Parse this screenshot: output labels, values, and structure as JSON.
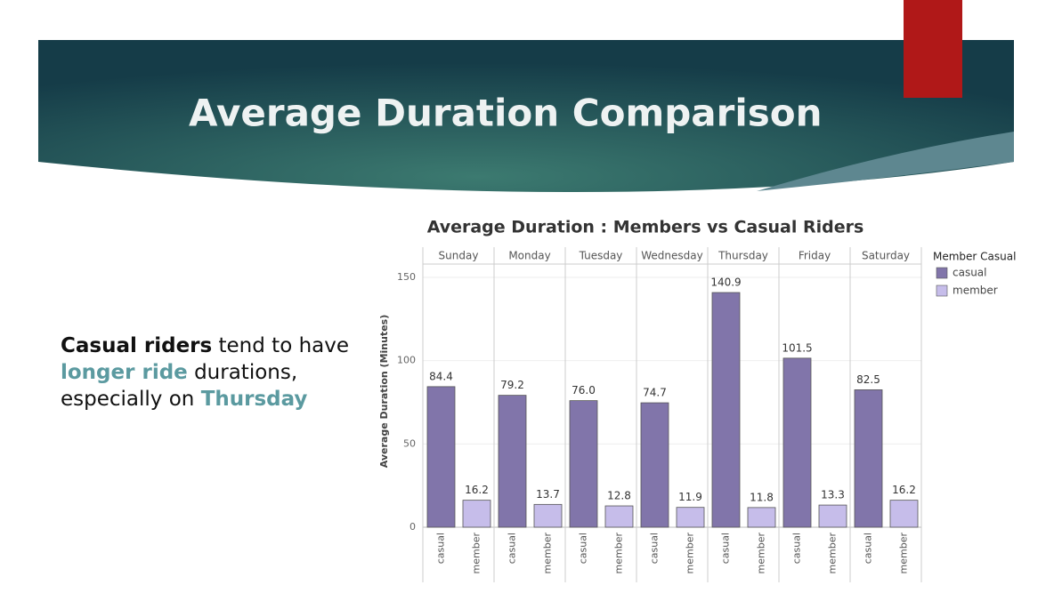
{
  "slide": {
    "title": "Average Duration Comparison",
    "side_text": [
      "Casual riders",
      "tend to have",
      "longer ride",
      "durations,",
      "especially on",
      "Thursday"
    ]
  },
  "chart_data": {
    "type": "bar",
    "title": "Average Duration : Members vs Casual Riders",
    "y_label": "Average Duration (Minutes)",
    "legend_title": "Member Casual",
    "categories": [
      "Sunday",
      "Monday",
      "Tuesday",
      "Wednesday",
      "Thursday",
      "Friday",
      "Saturday"
    ],
    "series": [
      {
        "name": "casual",
        "color": "#8175aa",
        "values": [
          84.4,
          79.2,
          76,
          74.7,
          140.9,
          101.5,
          82.5
        ],
        "value_labels": [
          "84.4",
          "79.2",
          "76.0",
          "74.7",
          "140.9",
          "101.5",
          "82.5"
        ]
      },
      {
        "name": "member",
        "color": "#c6bdea",
        "values": [
          16.2,
          13.7,
          12.8,
          11.9,
          11.8,
          13.3,
          16.2
        ]
      }
    ],
    "ylim": [
      0,
      158
    ],
    "yticks": [
      0,
      50,
      100,
      150
    ],
    "grid": true
  }
}
